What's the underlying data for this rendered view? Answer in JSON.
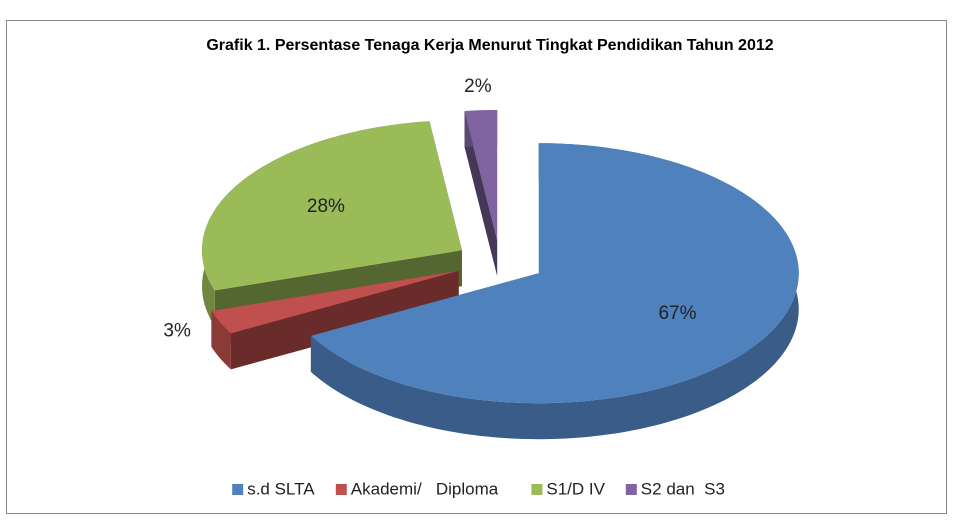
{
  "chart_data": {
    "type": "pie",
    "title": "Grafik 1. Persentase Tenaga Kerja Menurut Tingkat Pendidikan Tahun 2012",
    "categories": [
      "s.d SLTA",
      "Akademi/   Diploma",
      "S1/D IV",
      "S2 dan  S3"
    ],
    "values": [
      67,
      3,
      28,
      2
    ],
    "value_labels": [
      "67%",
      "3%",
      "28%",
      "2%"
    ],
    "colors": [
      "#4f81bd",
      "#c0504d",
      "#9bbb59",
      "#8064a2"
    ],
    "legend": "bottom"
  }
}
